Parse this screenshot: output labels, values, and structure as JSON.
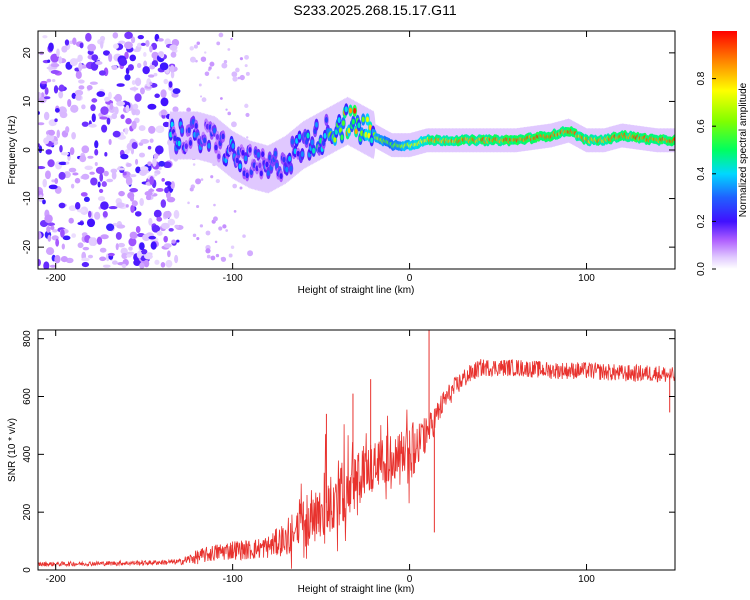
{
  "figure": {
    "title": "S233.2025.268.15.17.G11"
  },
  "chart_data": [
    {
      "type": "heatmap",
      "name": "spectrogram",
      "xlabel": "Height of straight line (km)",
      "ylabel": "Frequency (Hz)",
      "xlim": [
        -210,
        150
      ],
      "ylim": [
        -24.5,
        24.5
      ],
      "xticks": [
        -200,
        -100,
        0,
        100
      ],
      "xtick_labels": [
        "-200",
        "-100",
        "0",
        "100"
      ],
      "yticks": [
        -20,
        -10,
        0,
        10,
        20
      ],
      "ytick_labels": [
        "-20",
        "-10",
        "0",
        "10",
        "20"
      ],
      "colorbar": {
        "label": "Normalized spectral amplitude",
        "range": [
          0,
          1
        ],
        "ticks": [
          0.0,
          0.2,
          0.4,
          0.6,
          0.8
        ],
        "tick_labels": [
          "0.0",
          "0.2",
          "0.4",
          "0.6",
          "0.8"
        ]
      },
      "ridge": {
        "description": "dominant frequency ridge vs height",
        "x": [
          -130,
          -120,
          -110,
          -100,
          -90,
          -80,
          -70,
          -60,
          -50,
          -40,
          -35,
          -30,
          -20,
          -10,
          0,
          10,
          20,
          40,
          60,
          80,
          90,
          100,
          110,
          120,
          140,
          150
        ],
        "freq": [
          3,
          3,
          2,
          -1,
          -3,
          -4,
          -2,
          1,
          3,
          5,
          6,
          5,
          3,
          1,
          1,
          2,
          2,
          2,
          2,
          3,
          4,
          2,
          2,
          3,
          2,
          2
        ],
        "amplitude": [
          0.35,
          0.3,
          0.3,
          0.35,
          0.3,
          0.3,
          0.3,
          0.35,
          0.45,
          0.6,
          0.8,
          0.85,
          0.7,
          0.6,
          0.75,
          0.9,
          0.92,
          0.95,
          0.97,
          0.97,
          0.95,
          0.9,
          0.95,
          0.97,
          0.97,
          0.95
        ]
      },
      "noise_region": {
        "x_range": [
          -210,
          -130
        ],
        "freq_range": [
          -24,
          24
        ],
        "amplitude": 0.15
      }
    },
    {
      "type": "line",
      "name": "snr",
      "xlabel": "Height of straight line (km)",
      "ylabel": "SNR (10 * v/v)",
      "xlim": [
        -210,
        150
      ],
      "ylim": [
        0,
        830
      ],
      "xticks": [
        -200,
        -100,
        0,
        100
      ],
      "xtick_labels": [
        "-200",
        "-100",
        "0",
        "100"
      ],
      "yticks": [
        0,
        200,
        400,
        600,
        800
      ],
      "ytick_labels": [
        "0",
        "200",
        "400",
        "600",
        "800"
      ],
      "color": "#e8322e",
      "envelope": {
        "x": [
          -210,
          -180,
          -150,
          -130,
          -120,
          -110,
          -100,
          -90,
          -80,
          -70,
          -60,
          -50,
          -40,
          -30,
          -20,
          -10,
          -5,
          0,
          10,
          20,
          30,
          40,
          60,
          80,
          100,
          120,
          140,
          150
        ],
        "mean": [
          20,
          22,
          25,
          28,
          45,
          60,
          70,
          70,
          80,
          110,
          160,
          220,
          260,
          310,
          360,
          390,
          410,
          400,
          470,
          590,
          660,
          700,
          700,
          690,
          690,
          680,
          680,
          670
        ],
        "noise": [
          8,
          8,
          8,
          10,
          25,
          30,
          35,
          35,
          40,
          60,
          90,
          110,
          110,
          110,
          90,
          80,
          80,
          110,
          60,
          40,
          35,
          30,
          30,
          30,
          30,
          30,
          30,
          30
        ]
      },
      "spikes": [
        {
          "x": -47,
          "y": 540
        },
        {
          "x": -32,
          "y": 610
        },
        {
          "x": -22,
          "y": 660
        },
        {
          "x": 11,
          "y": 830
        },
        {
          "x": 14,
          "y": 130
        },
        {
          "x": 147,
          "y": 545
        }
      ]
    }
  ]
}
